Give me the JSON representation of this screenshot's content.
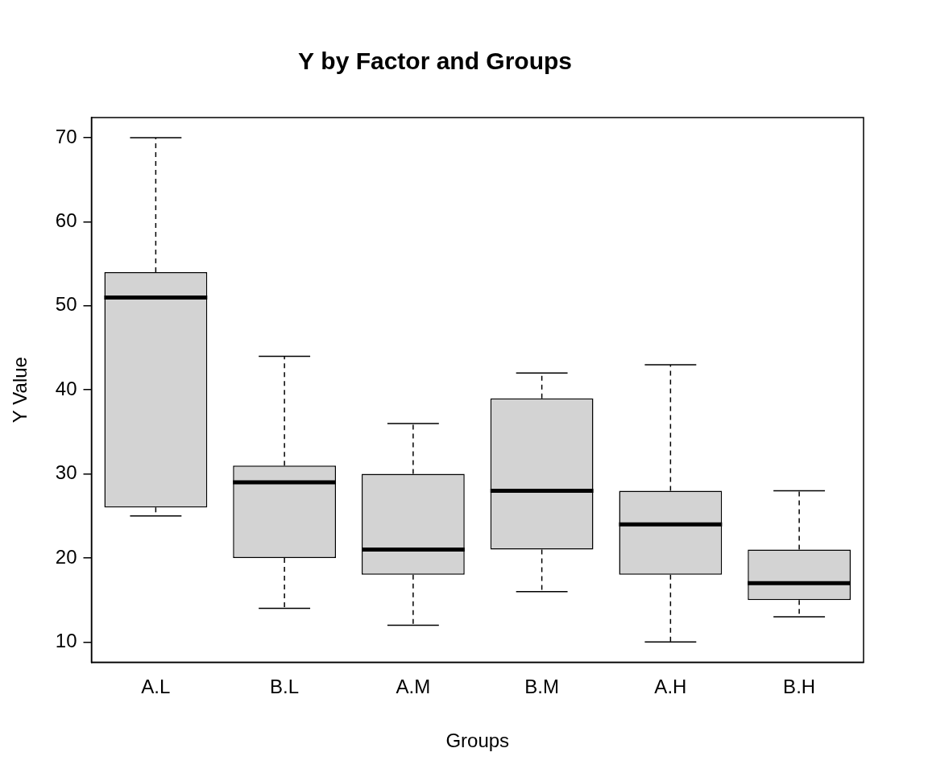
{
  "chart_data": {
    "type": "box",
    "title": "Y by Factor and Groups",
    "x_label": "Groups",
    "y_label": "Y Value",
    "categories": [
      "A.L",
      "B.L",
      "A.M",
      "B.M",
      "A.H",
      "B.H"
    ],
    "values": [
      {
        "min": 25,
        "q1": 26,
        "median": 51,
        "q3": 54,
        "max": 70
      },
      {
        "min": 14,
        "q1": 20,
        "median": 29,
        "q3": 31,
        "max": 44
      },
      {
        "min": 12,
        "q1": 18,
        "median": 21,
        "q3": 30,
        "max": 36
      },
      {
        "min": 16,
        "q1": 21,
        "median": 28,
        "q3": 39,
        "max": 42
      },
      {
        "min": 10,
        "q1": 18,
        "median": 24,
        "q3": 28,
        "max": 43
      },
      {
        "min": 13,
        "q1": 15,
        "median": 17,
        "q3": 21,
        "max": 28
      }
    ],
    "color": "#d3d3d3",
    "ylim": [
      7.6,
      72.4
    ],
    "yticks": [
      10,
      20,
      30,
      40,
      50,
      60,
      70
    ],
    "grid": false
  }
}
